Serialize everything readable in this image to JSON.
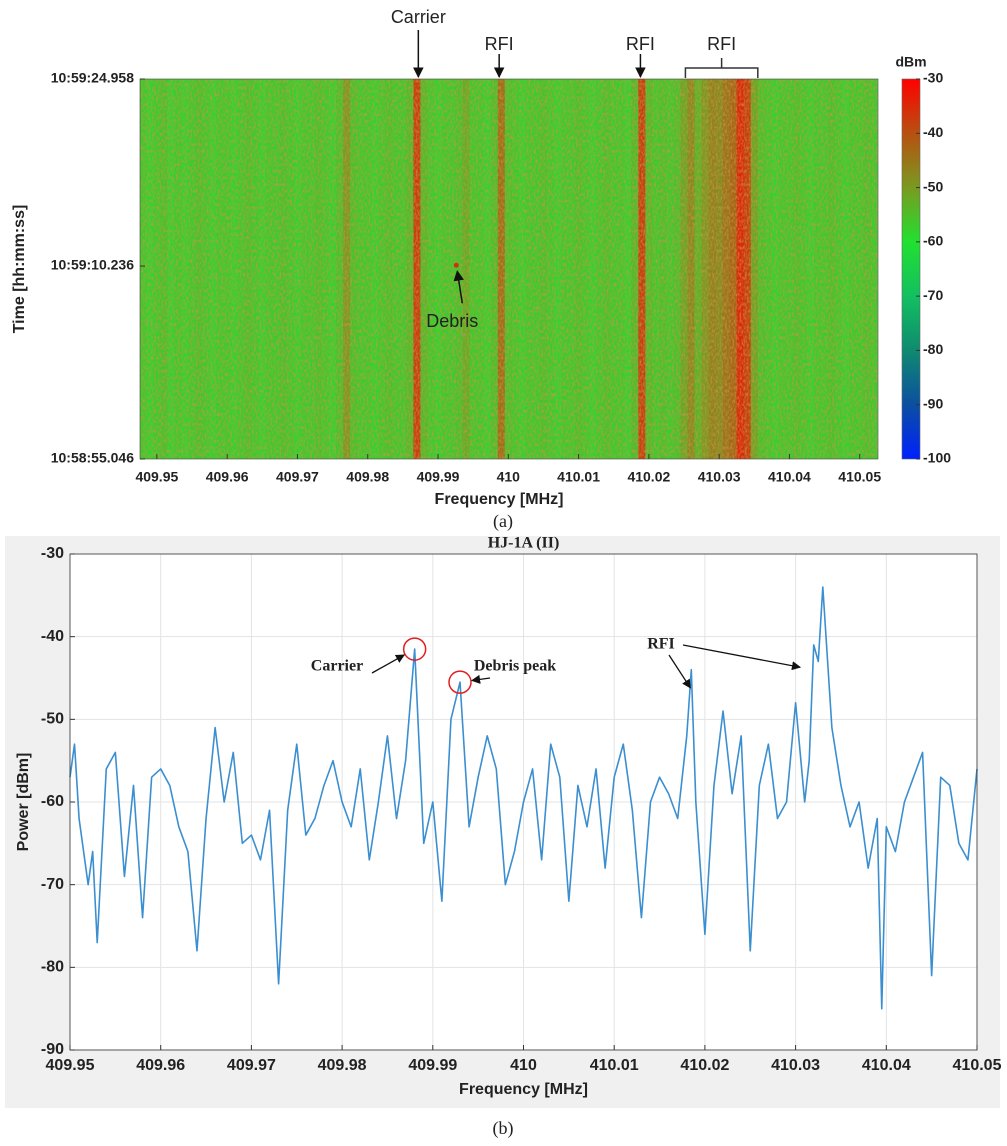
{
  "chart_data": [
    {
      "type": "heatmap",
      "xlabel": "Frequency [MHz]",
      "ylabel": "Time [hh:mm:ss]",
      "caption": "(a)",
      "xlim": [
        409.9476,
        410.0526
      ],
      "xticks": [
        409.95,
        409.96,
        409.97,
        409.98,
        409.99,
        410,
        410.01,
        410.02,
        410.03,
        410.04,
        410.05
      ],
      "ylim": [
        39535.046,
        39564.958
      ],
      "yticks": [
        {
          "value": 39535.046,
          "label": "10:58:55.046"
        },
        {
          "value": 39550.236,
          "label": "10:59:10.236"
        },
        {
          "value": 39564.958,
          "label": "10:59:24.958"
        }
      ],
      "colorbar_label": "dBm",
      "clim": [
        -100,
        -30
      ],
      "cticks": [
        -100,
        -90,
        -80,
        -70,
        -60,
        -50,
        -40,
        -30
      ],
      "colormap": [
        "#0020ff",
        "#0b4fa0",
        "#0f8a70",
        "#12c060",
        "#22e030",
        "#7a9a20",
        "#b85010",
        "#ff0000"
      ],
      "x": [
        409.948,
        409.949,
        409.95,
        409.951,
        409.952,
        409.953,
        409.954,
        409.955,
        409.956,
        409.957,
        409.958,
        409.959,
        409.96,
        409.961,
        409.962,
        409.963,
        409.964,
        409.965,
        409.966,
        409.967,
        409.968,
        409.969,
        409.97,
        409.971,
        409.972,
        409.973,
        409.974,
        409.975,
        409.976,
        409.977,
        409.978,
        409.979,
        409.98,
        409.981,
        409.982,
        409.983,
        409.984,
        409.985,
        409.986,
        409.987,
        409.988,
        409.989,
        409.99,
        409.991,
        409.992,
        409.993,
        409.994,
        409.995,
        409.996,
        409.997,
        409.998,
        409.999,
        410,
        410.001,
        410.002,
        410.003,
        410.004,
        410.005,
        410.006,
        410.007,
        410.008,
        410.009,
        410.01,
        410.011,
        410.012,
        410.013,
        410.014,
        410.015,
        410.016,
        410.017,
        410.018,
        410.019,
        410.02,
        410.021,
        410.022,
        410.023,
        410.024,
        410.025,
        410.026,
        410.027,
        410.028,
        410.029,
        410.03,
        410.031,
        410.032,
        410.033,
        410.034,
        410.035,
        410.036,
        410.037,
        410.038,
        410.039,
        410.04,
        410.041,
        410.042,
        410.043,
        410.044,
        410.045,
        410.046,
        410.047,
        410.048,
        410.049,
        410.05,
        410.051,
        410.052
      ],
      "values": [
        -57,
        -58,
        -57,
        -56,
        -58,
        -57,
        -58,
        -57,
        -56,
        -57,
        -58,
        -57,
        -57,
        -58,
        -57,
        -56,
        -57,
        -58,
        -57,
        -57,
        -56,
        -57,
        -58,
        -57,
        -57,
        -56,
        -57,
        -58,
        -56,
        -50,
        -56,
        -57,
        -57,
        -58,
        -57,
        -56,
        -57,
        -57,
        -55,
        -38,
        -55,
        -57,
        -58,
        -57,
        -57,
        -56,
        -53,
        -57,
        -57,
        -58,
        -56,
        -44,
        -56,
        -57,
        -58,
        -57,
        -57,
        -56,
        -57,
        -58,
        -57,
        -57,
        -56,
        -57,
        -58,
        -57,
        -56,
        -57,
        -57,
        -58,
        -55,
        -38,
        -55,
        -57,
        -56,
        -57,
        -56,
        -52,
        -48,
        -54,
        -50,
        -47,
        -48,
        -45,
        -43,
        -35,
        -38,
        -52,
        -56,
        -57,
        -58,
        -57,
        -57,
        -56,
        -57,
        -58,
        -57,
        -57,
        -56,
        -57,
        -58,
        -57,
        -57,
        -56,
        -57
      ],
      "annotations": [
        {
          "text": "Carrier",
          "x": 409.9872
        },
        {
          "text": "RFI",
          "x": 409.9987
        },
        {
          "text": "RFI",
          "x": 410.0188
        },
        {
          "text": "RFI",
          "x": 410.0252,
          "x2": 410.0355
        },
        {
          "text": "Debris",
          "x": 409.9926,
          "y": 39550.3
        }
      ]
    },
    {
      "type": "line",
      "title": "HJ-1A (II)",
      "xlabel": "Frequency [MHz]",
      "ylabel": "Power [dBm]",
      "caption": "(b)",
      "xlim": [
        409.95,
        410.05
      ],
      "xticks": [
        409.95,
        409.96,
        409.97,
        409.98,
        409.99,
        410,
        410.01,
        410.02,
        410.03,
        410.04,
        410.05
      ],
      "ylim": [
        -90,
        -30
      ],
      "yticks": [
        -90,
        -80,
        -70,
        -60,
        -50,
        -40,
        -30
      ],
      "grid": true,
      "color": "#3b8fd0",
      "x": [
        409.95,
        409.9505,
        409.951,
        409.952,
        409.9525,
        409.953,
        409.954,
        409.955,
        409.956,
        409.957,
        409.958,
        409.959,
        409.96,
        409.961,
        409.962,
        409.963,
        409.964,
        409.9645,
        409.965,
        409.966,
        409.967,
        409.968,
        409.969,
        409.97,
        409.971,
        409.972,
        409.973,
        409.974,
        409.975,
        409.976,
        409.977,
        409.978,
        409.979,
        409.98,
        409.981,
        409.982,
        409.983,
        409.984,
        409.985,
        409.986,
        409.987,
        409.988,
        409.989,
        409.99,
        409.991,
        409.992,
        409.993,
        409.994,
        409.995,
        409.996,
        409.997,
        409.998,
        409.999,
        410,
        410.001,
        410.002,
        410.003,
        410.004,
        410.005,
        410.006,
        410.007,
        410.008,
        410.009,
        410.01,
        410.011,
        410.012,
        410.013,
        410.014,
        410.015,
        410.016,
        410.017,
        410.018,
        410.0185,
        410.019,
        410.02,
        410.021,
        410.022,
        410.023,
        410.024,
        410.025,
        410.026,
        410.027,
        410.028,
        410.029,
        410.03,
        410.031,
        410.0315,
        410.032,
        410.0325,
        410.033,
        410.034,
        410.035,
        410.036,
        410.037,
        410.038,
        410.039,
        410.0395,
        410.04,
        410.041,
        410.042,
        410.043,
        410.044,
        410.045,
        410.046,
        410.047,
        410.048,
        410.049,
        410.05
      ],
      "values": [
        -57,
        -53,
        -62,
        -70,
        -66,
        -77,
        -56,
        -54,
        -69,
        -58,
        -74,
        -57,
        -56,
        -58,
        -63,
        -66,
        -78,
        -70,
        -62,
        -51,
        -60,
        -54,
        -65,
        -64,
        -67,
        -61,
        -82,
        -61,
        -53,
        -64,
        -62,
        -58,
        -55,
        -60,
        -63,
        -56,
        -67,
        -60,
        -52,
        -62,
        -55,
        -41.5,
        -65,
        -60,
        -72,
        -50,
        -45.5,
        -63,
        -57,
        -52,
        -56,
        -70,
        -66,
        -60,
        -56,
        -67,
        -53,
        -57,
        -72,
        -58,
        -63,
        -56,
        -68,
        -57,
        -53,
        -61,
        -74,
        -60,
        -57,
        -59,
        -62,
        -52,
        -44,
        -60,
        -76,
        -58,
        -49,
        -59,
        -52,
        -78,
        -58,
        -53,
        -62,
        -60,
        -48,
        -60,
        -55,
        -41,
        -43,
        -34,
        -51,
        -58,
        -63,
        -60,
        -68,
        -62,
        -85,
        -63,
        -66,
        -60,
        -57,
        -54,
        -81,
        -57,
        -58,
        -65,
        -67,
        -56
      ],
      "annotations": [
        {
          "text": "Carrier",
          "x": 409.988,
          "y": -41.5,
          "circled": true
        },
        {
          "text": "Debris peak",
          "x": 409.993,
          "y": -45.5,
          "circled": true
        },
        {
          "text": "RFI",
          "points": [
            [
              410.0184,
              -46.2
            ],
            [
              410.0305,
              -43.7
            ]
          ]
        }
      ]
    }
  ]
}
